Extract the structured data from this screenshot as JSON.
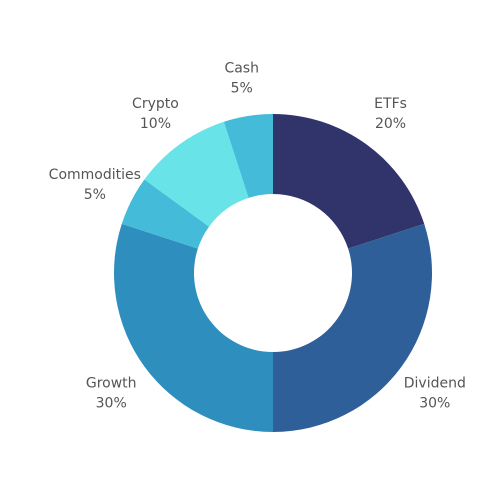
{
  "chart_data": {
    "type": "pie",
    "variant": "donut",
    "title": "",
    "categories": [
      "ETFs",
      "Dividend",
      "Growth",
      "Commodities",
      "Crypto",
      "Cash"
    ],
    "values": [
      20,
      30,
      30,
      5,
      10,
      5
    ],
    "value_labels": [
      "20%",
      "30%",
      "30%",
      "5%",
      "10%",
      "5%"
    ],
    "colors": [
      "#30346A",
      "#2E5F99",
      "#2E8FBF",
      "#45BBDA",
      "#68E4E9",
      "#45BBDA"
    ],
    "legend": "none",
    "labels_outside": true
  }
}
